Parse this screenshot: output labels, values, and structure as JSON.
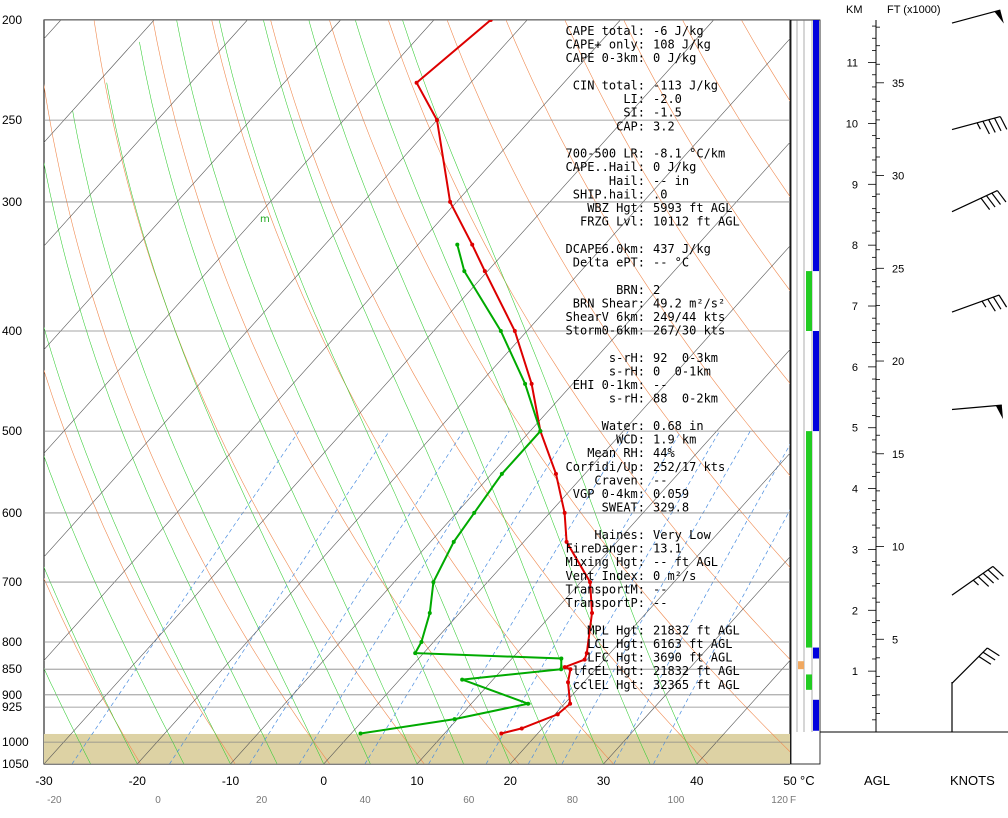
{
  "chart_data": {
    "type": "line",
    "chart_kind": "skew-T log-P sounding",
    "pressure_ticks": [
      200,
      250,
      300,
      400,
      500,
      600,
      700,
      800,
      850,
      900,
      925,
      1000,
      1050
    ],
    "temp_ticks_c": [
      -30,
      -20,
      -10,
      0,
      10,
      20,
      30,
      40,
      50
    ],
    "temp_ticks_f": [
      -20,
      0,
      20,
      40,
      60,
      80,
      100,
      120
    ],
    "temp_unit_label_c": "°C",
    "temp_unit_label_f": "F",
    "xlim_c": [
      -30,
      50
    ],
    "ylim_hpa": [
      1050,
      200
    ],
    "surface_pressure_hpa": 982,
    "parcel_marker": "m",
    "series": [
      {
        "role": "temperature",
        "color": "#dd0000",
        "points": [
          {
            "p": 981,
            "t": 16.1
          },
          {
            "p": 970,
            "t": 17.8
          },
          {
            "p": 940,
            "t": 20.3
          },
          {
            "p": 918,
            "t": 20.6
          },
          {
            "p": 875,
            "t": 18.3
          },
          {
            "p": 850,
            "t": 17.3
          },
          {
            "p": 846,
            "t": 16.5
          },
          {
            "p": 832,
            "t": 17.9
          },
          {
            "p": 820,
            "t": 17.5
          },
          {
            "p": 750,
            "t": 14.2
          },
          {
            "p": 700,
            "t": 11.0
          },
          {
            "p": 640,
            "t": 4.6
          },
          {
            "p": 600,
            "t": 1.6
          },
          {
            "p": 550,
            "t": -3.1
          },
          {
            "p": 500,
            "t": -8.9
          },
          {
            "p": 450,
            "t": -14.4
          },
          {
            "p": 400,
            "t": -21.3
          },
          {
            "p": 350,
            "t": -30.3
          },
          {
            "p": 330,
            "t": -34.2
          },
          {
            "p": 300,
            "t": -40.7
          },
          {
            "p": 250,
            "t": -50.0
          },
          {
            "p": 230,
            "t": -55.8
          },
          {
            "p": 200,
            "t": -53.9
          }
        ]
      },
      {
        "role": "dewpoint",
        "color": "#00aa00",
        "points": [
          {
            "p": 981,
            "t": 1.0
          },
          {
            "p": 950,
            "t": 9.7
          },
          {
            "p": 918,
            "t": 16.1
          },
          {
            "p": 870,
            "t": 6.7
          },
          {
            "p": 850,
            "t": 16.3
          },
          {
            "p": 830,
            "t": 15.3
          },
          {
            "p": 820,
            "t": -0.9
          },
          {
            "p": 800,
            "t": -1.3
          },
          {
            "p": 750,
            "t": -3.2
          },
          {
            "p": 700,
            "t": -5.8
          },
          {
            "p": 640,
            "t": -7.5
          },
          {
            "p": 600,
            "t": -8.1
          },
          {
            "p": 550,
            "t": -8.9
          },
          {
            "p": 500,
            "t": -8.9
          },
          {
            "p": 450,
            "t": -15.1
          },
          {
            "p": 400,
            "t": -22.8
          },
          {
            "p": 350,
            "t": -32.5
          },
          {
            "p": 330,
            "t": -35.8
          }
        ]
      }
    ],
    "height_axis": {
      "km_label": "KM",
      "ft_label": "FT (x1000)",
      "km_ticks": [
        1,
        2,
        3,
        4,
        5,
        6,
        7,
        8,
        9,
        10,
        11
      ],
      "ft_ticks": [
        5,
        10,
        15,
        20,
        25,
        30,
        35
      ],
      "max_km": 11.7
    },
    "bottom_labels": {
      "agl": "AGL",
      "knots": "KNOTS"
    },
    "wind_barbs": [
      {
        "km": 11.65,
        "speed_kt": 52,
        "dir_deg": 255
      },
      {
        "km": 9.9,
        "speed_kt": 45,
        "dir_deg": 255
      },
      {
        "km": 8.55,
        "speed_kt": 40,
        "dir_deg": 245
      },
      {
        "km": 6.9,
        "speed_kt": 35,
        "dir_deg": 250
      },
      {
        "km": 5.3,
        "speed_kt": 50,
        "dir_deg": 265
      },
      {
        "km": 2.25,
        "speed_kt": 45,
        "dir_deg": 235
      },
      {
        "km": 0.8,
        "speed_kt": 30,
        "dir_deg": 225
      },
      {
        "km": 0.0,
        "speed_kt": 2,
        "dir_deg": 180
      }
    ],
    "bars": [
      {
        "color": "#0000dd",
        "column": "right",
        "from_hpa": 200,
        "to_hpa": 350
      },
      {
        "color": "#0000dd",
        "column": "right",
        "from_hpa": 400,
        "to_hpa": 500
      },
      {
        "color": "#0000dd",
        "column": "right",
        "from_hpa": 810,
        "to_hpa": 830
      },
      {
        "color": "#0000dd",
        "column": "right",
        "from_hpa": 910,
        "to_hpa": 975
      },
      {
        "color": "#22cc22",
        "column": "left",
        "from_hpa": 350,
        "to_hpa": 400
      },
      {
        "color": "#22cc22",
        "column": "left",
        "from_hpa": 500,
        "to_hpa": 810
      },
      {
        "color": "#22cc22",
        "column": "left",
        "from_hpa": 860,
        "to_hpa": 890
      },
      {
        "color": "#f0a860",
        "column": "left",
        "from_hpa": 835,
        "to_hpa": 850
      }
    ]
  },
  "indices": [
    {
      "label": " CAPE total:",
      "value": "    -6 J/kg"
    },
    {
      "label": " CAPE+ only:",
      "value": "   108 J/kg"
    },
    {
      "label": " CAPE 0-3km:",
      "value": "     0 J/kg"
    },
    {
      "label": "",
      "value": ""
    },
    {
      "label": "  CIN total:",
      "value": "  -113 J/kg"
    },
    {
      "label": "        LI:",
      "value": "  -2.0"
    },
    {
      "label": "        SI:",
      "value": "  -1.5"
    },
    {
      "label": "       CAP:",
      "value": "   3.2"
    },
    {
      "label": "",
      "value": ""
    },
    {
      "label": " 700-500 LR:",
      "value": "  -8.1 °C/km"
    },
    {
      "label": " CAPE..Hail:",
      "value": "     0 J/kg"
    },
    {
      "label": "       Hail:",
      "value": "    -- in"
    },
    {
      "label": " SHIP.hail:",
      "value": "    .0"
    },
    {
      "label": "   WBZ Hgt:",
      "value": "  5993 ft AGL"
    },
    {
      "label": "  FRZG Lvl:",
      "value": " 10112 ft AGL"
    },
    {
      "label": "",
      "value": ""
    },
    {
      "label": " DCAPE6.0km:",
      "value": "   437 J/kg"
    },
    {
      "label": " Delta ePT:",
      "value": "    -- °C"
    },
    {
      "label": "",
      "value": ""
    },
    {
      "label": "       BRN:",
      "value": "     2"
    },
    {
      "label": " BRN Shear:",
      "value": "  49.2 m²/s²"
    },
    {
      "label": " ShearV 6km:",
      "value": " 249/44 kts"
    },
    {
      "label": "Storm0-6km:",
      "value": " 267/30 kts"
    },
    {
      "label": "",
      "value": ""
    },
    {
      "label": "      s-rH:",
      "value": "    92  0-3km"
    },
    {
      "label": "      s-rH:",
      "value": "     0  0-1km"
    },
    {
      "label": " EHI 0-1km:",
      "value": "    --"
    },
    {
      "label": "      s-rH:",
      "value": "    88  0-2km"
    },
    {
      "label": "",
      "value": ""
    },
    {
      "label": "     Water:",
      "value": "  0.68 in"
    },
    {
      "label": "       WCD:",
      "value": "   1.9 km"
    },
    {
      "label": "   Mean RH:",
      "value": "   44%"
    },
    {
      "label": "Corfidi/Up:",
      "value": " 252/17 kts"
    },
    {
      "label": "    Craven:",
      "value": "    --"
    },
    {
      "label": " VGP 0-4km:",
      "value": " 0.059"
    },
    {
      "label": "     SWEAT:",
      "value": " 329.8"
    },
    {
      "label": "",
      "value": ""
    },
    {
      "label": "    Haines:",
      "value": "  Very Low"
    },
    {
      "label": "FireDanger:",
      "value": "  13.1"
    },
    {
      "label": "Mixing Hgt:",
      "value": "    -- ft AGL"
    },
    {
      "label": "Vent Index:",
      "value": "  0 m²/s"
    },
    {
      "label": "TransportM:",
      "value": "    --"
    },
    {
      "label": "TransportP:",
      "value": "    --"
    },
    {
      "label": "",
      "value": ""
    },
    {
      "label": "   MPL Hgt:",
      "value": " 21832 ft AGL"
    },
    {
      "label": "   LCL Hgt:",
      "value": "  6163 ft AGL"
    },
    {
      "label": "   LFC Hgt:",
      "value": "  3690 ft AGL"
    },
    {
      "label": "  lfcEL Hgt:",
      "value": " 21832 ft AGL"
    },
    {
      "label": "  cclEL Hgt:",
      "value": " 32365 ft AGL"
    }
  ]
}
